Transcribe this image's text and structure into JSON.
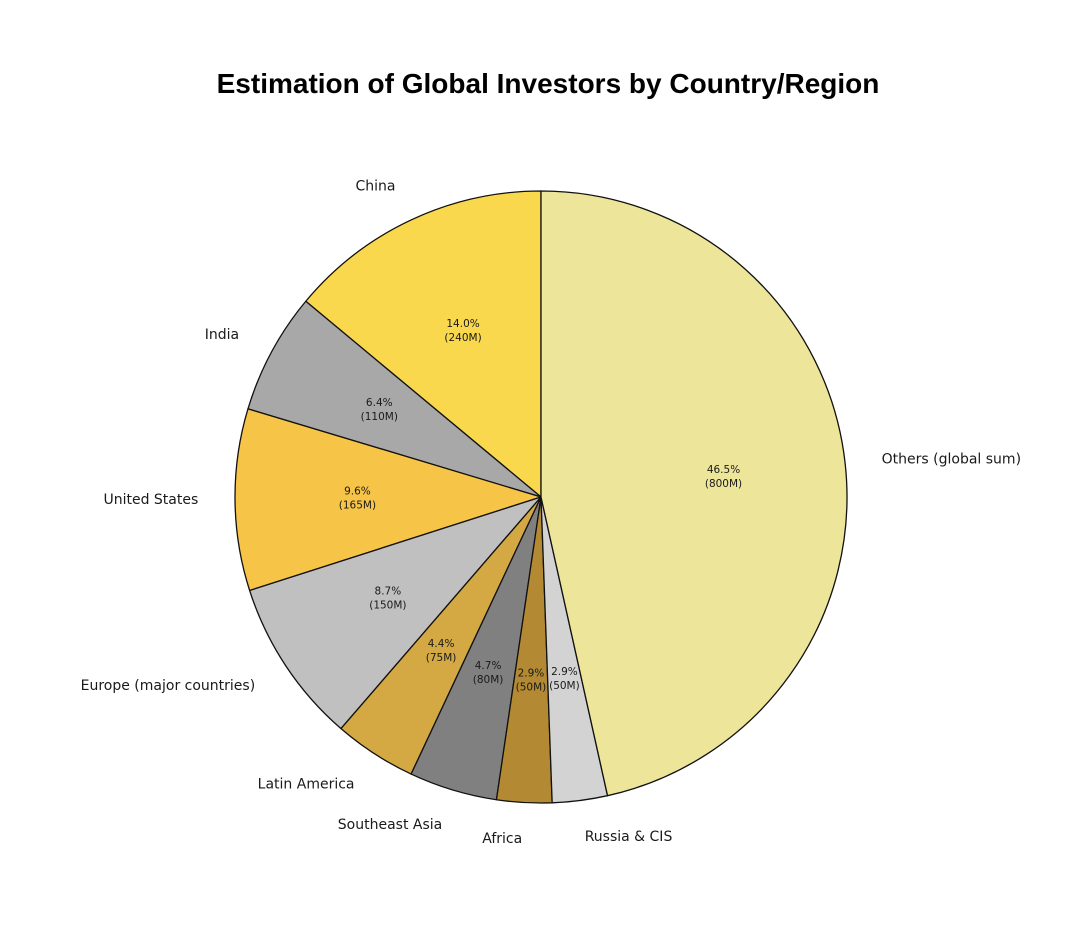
{
  "chart_data": {
    "type": "pie",
    "title": "Estimation of Global Investors by Country/Region",
    "start_angle_deg": 90,
    "direction": "counterclockwise",
    "slices": [
      {
        "label": "China",
        "value": 240,
        "percent_label": "14.0%",
        "value_label": "(240M)",
        "color": "#F9D84E"
      },
      {
        "label": "India",
        "value": 110,
        "percent_label": "6.4%",
        "value_label": "(110M)",
        "color": "#A8A8A8"
      },
      {
        "label": "United States",
        "value": 165,
        "percent_label": "9.6%",
        "value_label": "(165M)",
        "color": "#F6C548"
      },
      {
        "label": "Europe (major countries)",
        "value": 150,
        "percent_label": "8.7%",
        "value_label": "(150M)",
        "color": "#C0C0C0"
      },
      {
        "label": "Latin America",
        "value": 75,
        "percent_label": "4.4%",
        "value_label": "(75M)",
        "color": "#D4A843"
      },
      {
        "label": "Southeast Asia",
        "value": 80,
        "percent_label": "4.7%",
        "value_label": "(80M)",
        "color": "#808080"
      },
      {
        "label": "Africa",
        "value": 50,
        "percent_label": "2.9%",
        "value_label": "(50M)",
        "color": "#B38A33"
      },
      {
        "label": "Russia & CIS",
        "value": 50,
        "percent_label": "2.9%",
        "value_label": "(50M)",
        "color": "#D3D3D3"
      },
      {
        "label": "Others (global sum)",
        "value": 800,
        "percent_label": "46.5%",
        "value_label": "(800M)",
        "color": "#EDE59A"
      }
    ]
  }
}
